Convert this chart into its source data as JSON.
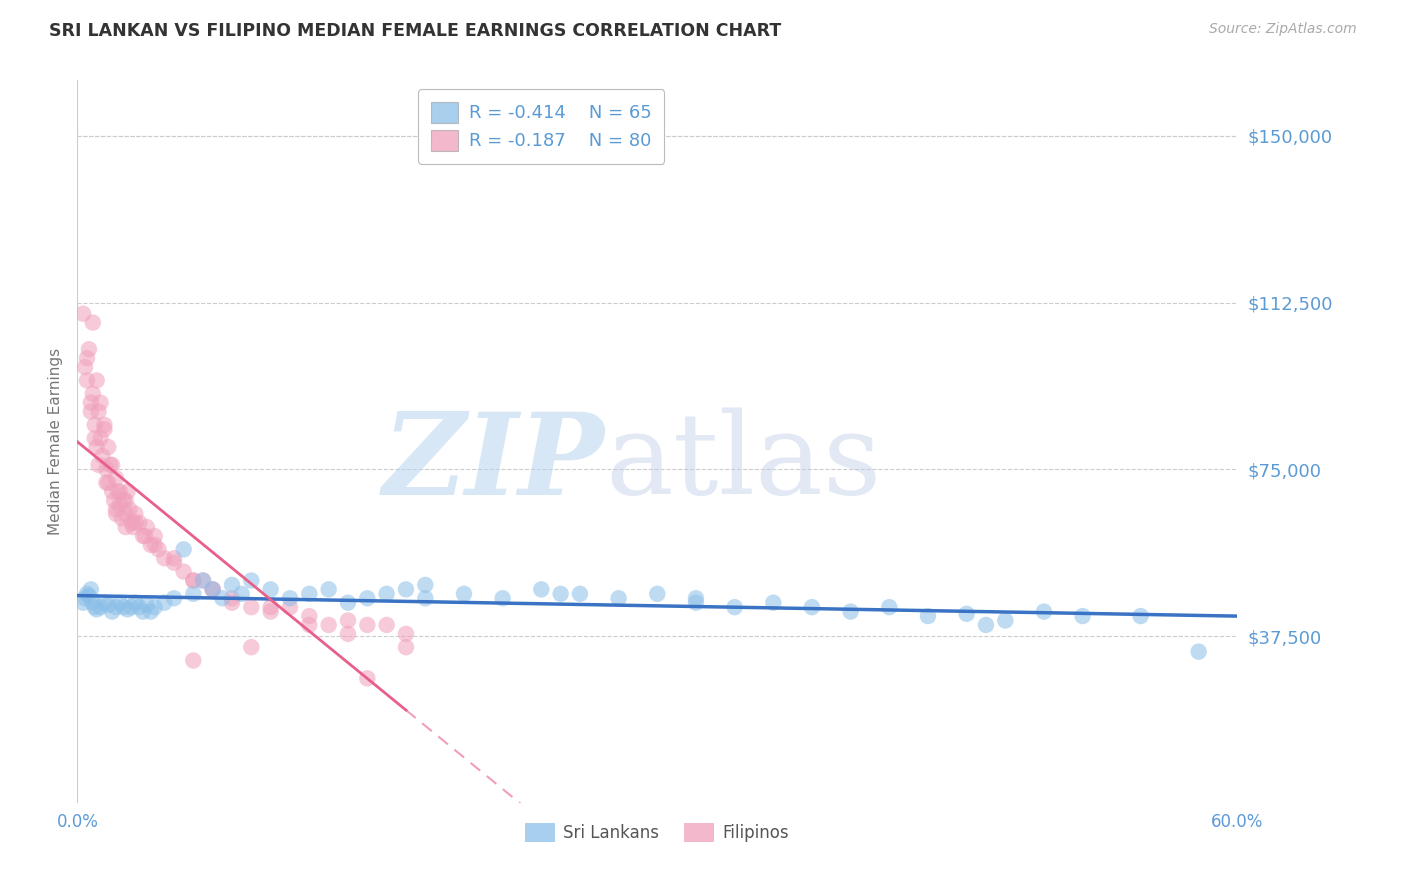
{
  "title": "SRI LANKAN VS FILIPINO MEDIAN FEMALE EARNINGS CORRELATION CHART",
  "source": "Source: ZipAtlas.com",
  "ylabel": "Median Female Earnings",
  "xlim": [
    0.0,
    0.6
  ],
  "ylim": [
    0,
    162500
  ],
  "yticks": [
    37500,
    75000,
    112500,
    150000
  ],
  "ytick_labels": [
    "$37,500",
    "$75,000",
    "$112,500",
    "$150,000"
  ],
  "xticks": [
    0.0,
    0.6
  ],
  "xtick_labels": [
    "0.0%",
    "60.0%"
  ],
  "watermark_zip": "ZIP",
  "watermark_atlas": "atlas",
  "legend_sri_r": "-0.414",
  "legend_sri_n": "65",
  "legend_fil_r": "-0.187",
  "legend_fil_n": "80",
  "sri_color": "#8BBFE8",
  "fil_color": "#F0A0BB",
  "sri_line_color": "#3A72C4",
  "fil_line_color": "#E8608A",
  "axis_color": "#5B9BD5",
  "background_color": "#FFFFFF",
  "sri_x": [
    0.003,
    0.004,
    0.005,
    0.006,
    0.007,
    0.008,
    0.009,
    0.01,
    0.012,
    0.014,
    0.016,
    0.018,
    0.02,
    0.022,
    0.024,
    0.026,
    0.028,
    0.03,
    0.032,
    0.034,
    0.036,
    0.038,
    0.04,
    0.045,
    0.05,
    0.055,
    0.06,
    0.065,
    0.07,
    0.075,
    0.08,
    0.085,
    0.09,
    0.1,
    0.11,
    0.12,
    0.13,
    0.14,
    0.15,
    0.16,
    0.17,
    0.18,
    0.2,
    0.22,
    0.24,
    0.26,
    0.28,
    0.3,
    0.32,
    0.34,
    0.36,
    0.38,
    0.4,
    0.42,
    0.44,
    0.46,
    0.48,
    0.5,
    0.52,
    0.55,
    0.32,
    0.25,
    0.18,
    0.58,
    0.47
  ],
  "sri_y": [
    45000,
    46000,
    47000,
    46500,
    48000,
    45000,
    44000,
    43500,
    44000,
    45000,
    44500,
    43000,
    44000,
    45000,
    44000,
    43500,
    44000,
    45000,
    44000,
    43000,
    44500,
    43000,
    44000,
    45000,
    46000,
    57000,
    47000,
    50000,
    48000,
    46000,
    49000,
    47000,
    50000,
    48000,
    46000,
    47000,
    48000,
    45000,
    46000,
    47000,
    48000,
    49000,
    47000,
    46000,
    48000,
    47000,
    46000,
    47000,
    45000,
    44000,
    45000,
    44000,
    43000,
    44000,
    42000,
    42500,
    41000,
    43000,
    42000,
    42000,
    46000,
    47000,
    46000,
    34000,
    40000
  ],
  "fil_x": [
    0.003,
    0.004,
    0.005,
    0.006,
    0.007,
    0.008,
    0.009,
    0.01,
    0.011,
    0.012,
    0.013,
    0.014,
    0.015,
    0.016,
    0.017,
    0.018,
    0.019,
    0.02,
    0.021,
    0.022,
    0.023,
    0.024,
    0.025,
    0.026,
    0.027,
    0.028,
    0.029,
    0.03,
    0.032,
    0.034,
    0.036,
    0.038,
    0.04,
    0.042,
    0.045,
    0.05,
    0.055,
    0.06,
    0.065,
    0.07,
    0.08,
    0.09,
    0.1,
    0.11,
    0.12,
    0.13,
    0.14,
    0.15,
    0.16,
    0.17,
    0.008,
    0.01,
    0.012,
    0.014,
    0.016,
    0.018,
    0.02,
    0.022,
    0.025,
    0.03,
    0.035,
    0.04,
    0.05,
    0.06,
    0.07,
    0.08,
    0.1,
    0.12,
    0.14,
    0.17,
    0.005,
    0.007,
    0.009,
    0.011,
    0.015,
    0.02,
    0.025,
    0.15,
    0.09,
    0.06
  ],
  "fil_y": [
    110000,
    98000,
    95000,
    102000,
    88000,
    92000,
    85000,
    80000,
    88000,
    82000,
    78000,
    84000,
    75000,
    72000,
    76000,
    70000,
    68000,
    66000,
    70000,
    67000,
    64000,
    68000,
    65000,
    70000,
    66000,
    63000,
    62000,
    65000,
    63000,
    60000,
    62000,
    58000,
    60000,
    57000,
    55000,
    54000,
    52000,
    50000,
    50000,
    48000,
    46000,
    44000,
    44000,
    44000,
    42000,
    40000,
    41000,
    40000,
    40000,
    38000,
    108000,
    95000,
    90000,
    85000,
    80000,
    76000,
    73000,
    70000,
    68000,
    63000,
    60000,
    58000,
    55000,
    50000,
    48000,
    45000,
    43000,
    40000,
    38000,
    35000,
    100000,
    90000,
    82000,
    76000,
    72000,
    65000,
    62000,
    28000,
    35000,
    32000
  ]
}
